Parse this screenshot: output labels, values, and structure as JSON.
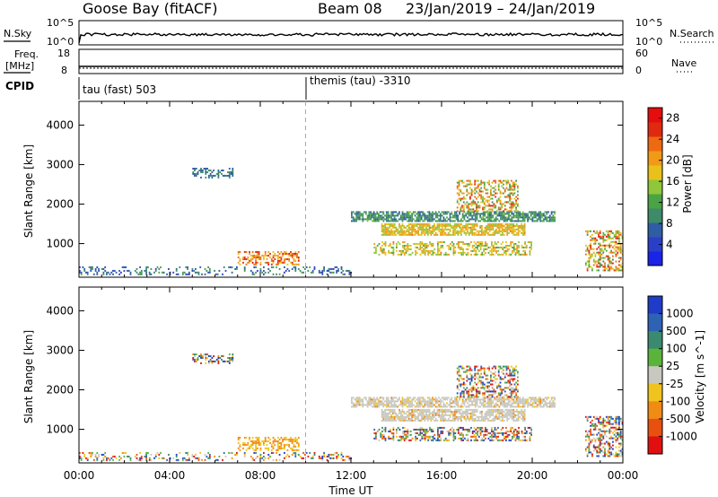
{
  "header": {
    "radar_title": "Goose Bay (fitACF)",
    "beam_title": "Beam 08",
    "date_range": "23/Jan/2019 – 24/Jan/2019"
  },
  "top_panels": {
    "nsky_label": "N.Sky",
    "nsky_ticks": [
      "10^5",
      "10^0"
    ],
    "nsearch_label": "N.Search",
    "nsearch_ticks": [
      "10^5",
      "10^0"
    ],
    "freq_label_1": "Freq.",
    "freq_label_2": "[MHz]",
    "freq_ticks": [
      "18",
      "8"
    ],
    "nave_label": "Nave",
    "nave_ticks": [
      "60",
      "0"
    ],
    "cpid_label": "CPID",
    "cpid_segments": [
      "tau (fast) 503",
      "themis (tau) -3310"
    ]
  },
  "chart_data": [
    {
      "type": "heatmap",
      "panel": "power",
      "ylabel": "Slant Range [km]",
      "yticks": [
        "1000",
        "2000",
        "3000",
        "4000"
      ],
      "ylim": [
        150,
        4600
      ],
      "xlim": [
        "00:00",
        "24:00"
      ],
      "colorbar_label": "Power [dB]",
      "colorbar_ticks": [
        "28",
        "24",
        "20",
        "16",
        "12",
        "8",
        "4"
      ],
      "clim": [
        0,
        30
      ],
      "colors": [
        "#1a23e6",
        "#2a3fc8",
        "#2f5da3",
        "#3e8a6a",
        "#4aa345",
        "#8fc63a",
        "#e8c21b",
        "#f09a17",
        "#ee6a12",
        "#e02a10",
        "#e50d0d"
      ],
      "echo_regions": [
        {
          "t_start": "05:00",
          "t_end": "06:50",
          "range_km": [
            2650,
            2900
          ],
          "power_db": [
            6,
            10
          ]
        },
        {
          "t_start": "12:00",
          "t_end": "21:00",
          "range_km": [
            1550,
            1800
          ],
          "power_db": [
            6,
            14
          ]
        },
        {
          "t_start": "13:20",
          "t_end": "19:40",
          "range_km": [
            1200,
            1500
          ],
          "power_db": [
            14,
            22
          ]
        },
        {
          "t_start": "16:40",
          "t_end": "19:20",
          "range_km": [
            1800,
            2600
          ],
          "power_db": [
            10,
            26
          ]
        },
        {
          "t_start": "13:00",
          "t_end": "20:00",
          "range_km": [
            700,
            1050
          ],
          "power_db": [
            12,
            22
          ]
        },
        {
          "t_start": "07:00",
          "t_end": "09:40",
          "range_km": [
            450,
            800
          ],
          "power_db": [
            16,
            28
          ]
        },
        {
          "t_start": "22:20",
          "t_end": "24:00",
          "range_km": [
            300,
            1300
          ],
          "power_db": [
            10,
            28
          ]
        },
        {
          "t_start": "00:00",
          "t_end": "12:00",
          "range_km": [
            200,
            400
          ],
          "power_db": [
            4,
            12
          ]
        }
      ]
    },
    {
      "type": "heatmap",
      "panel": "velocity",
      "ylabel": "Slant Range [km]",
      "yticks": [
        "1000",
        "2000",
        "3000",
        "4000"
      ],
      "ylim": [
        150,
        4600
      ],
      "xlim": [
        "00:00",
        "24:00"
      ],
      "xticks": [
        "00:00",
        "04:00",
        "08:00",
        "12:00",
        "16:00",
        "20:00",
        "00:00"
      ],
      "xlabel": "Time UT",
      "colorbar_label": "Velocity [m s^-1]",
      "colorbar_ticks": [
        "1000",
        "500",
        "100",
        "25",
        "-25",
        "-100",
        "-500",
        "-1000"
      ],
      "ground_scatter_color": "#c8c8c0",
      "colors": [
        "#1e3cc8",
        "#2d62b4",
        "#3a8a70",
        "#5ab43c",
        "#c8c8c0",
        "#f0c31e",
        "#f08c14",
        "#e85010",
        "#e01010"
      ]
    }
  ],
  "annotations": {
    "dashed_marker_time": "10:00"
  }
}
